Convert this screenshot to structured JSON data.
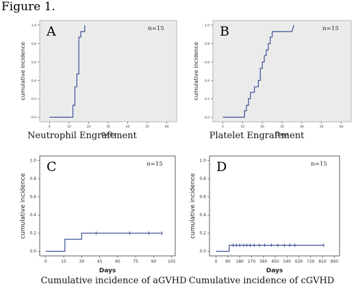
{
  "figure_title": "Figure 1.",
  "chart_data": [
    {
      "type": "line",
      "step": true,
      "panel_letter": "A",
      "n_label": "n=15",
      "title": "Neutrophil Engraftment",
      "xlabel": "Days",
      "ylabel": "cumulative incidence",
      "xlim": [
        -5,
        65
      ],
      "ylim": [
        -0.05,
        1.05
      ],
      "xticks": [
        0,
        10,
        20,
        30,
        40,
        50,
        60
      ],
      "yticks": [
        "0.0",
        "0.2",
        "0.4",
        "0.6",
        "0.8",
        "1.0"
      ],
      "series": [
        {
          "x": [
            0,
            12,
            12,
            13,
            13,
            14,
            14,
            15,
            15,
            16,
            16,
            18,
            18
          ],
          "y": [
            0,
            0,
            0.13,
            0.13,
            0.33,
            0.33,
            0.47,
            0.47,
            0.87,
            0.87,
            0.93,
            0.93,
            1.0
          ]
        }
      ]
    },
    {
      "type": "line",
      "step": true,
      "panel_letter": "B",
      "n_label": "n=15",
      "title": "Platelet Engraftment",
      "xlabel": "Days",
      "ylabel": "cumulative incidence",
      "xlim": [
        -5,
        65
      ],
      "ylim": [
        -0.05,
        1.05
      ],
      "xticks": [
        0,
        10,
        20,
        30,
        40,
        50,
        60
      ],
      "yticks": [
        "0.0",
        "0.2",
        "0.4",
        "0.6",
        "0.8",
        "1.0"
      ],
      "series": [
        {
          "x": [
            0,
            11,
            11,
            12,
            12,
            13,
            13,
            14,
            14,
            16,
            16,
            18,
            18,
            19,
            19,
            20,
            20,
            21,
            21,
            22,
            22,
            23,
            23,
            24,
            24,
            25,
            25,
            35,
            35,
            36
          ],
          "y": [
            0,
            0,
            0.07,
            0.07,
            0.13,
            0.13,
            0.2,
            0.2,
            0.27,
            0.27,
            0.33,
            0.33,
            0.4,
            0.4,
            0.53,
            0.53,
            0.6,
            0.6,
            0.67,
            0.67,
            0.73,
            0.73,
            0.8,
            0.8,
            0.87,
            0.87,
            0.93,
            0.93,
            0.93,
            1.0
          ]
        }
      ]
    },
    {
      "type": "line",
      "step": true,
      "panel_letter": "C",
      "n_label": "n=15",
      "title": "Cumulative incidence of aGVHD",
      "xlabel": "Days",
      "ylabel": "cumulative incidence",
      "xlim": [
        -5,
        108
      ],
      "ylim": [
        -0.05,
        1.05
      ],
      "xticks": [
        0,
        15,
        30,
        45,
        60,
        75,
        90,
        105
      ],
      "yticks": [
        "0.0",
        "0.2",
        "0.4",
        "0.6",
        "0.8",
        "1.0"
      ],
      "series": [
        {
          "x": [
            0,
            16,
            16,
            30,
            30,
            97
          ],
          "y": [
            0,
            0,
            0.133,
            0.133,
            0.2,
            0.2
          ],
          "censor_x": [
            42,
            70,
            86,
            97
          ]
        }
      ]
    },
    {
      "type": "line",
      "step": true,
      "panel_letter": "D",
      "n_label": "n=15",
      "title": "Cumulative incidence of cGVHD",
      "xlabel": "Days",
      "ylabel": "cumulative incidence",
      "xlim": [
        -50,
        940
      ],
      "ylim": [
        -0.05,
        1.05
      ],
      "xticks": [
        0,
        90,
        180,
        270,
        360,
        450,
        540,
        630,
        720,
        810,
        900
      ],
      "yticks": [
        "0.0",
        "0.2",
        "0.4",
        "0.6",
        "0.8",
        "1.0"
      ],
      "series": [
        {
          "x": [
            0,
            100,
            100,
            820
          ],
          "y": [
            0,
            0,
            0.067,
            0.067
          ],
          "censor_x": [
            130,
            155,
            180,
            210,
            235,
            260,
            290,
            330,
            370,
            420,
            470,
            520,
            560,
            600,
            820
          ]
        }
      ]
    }
  ]
}
